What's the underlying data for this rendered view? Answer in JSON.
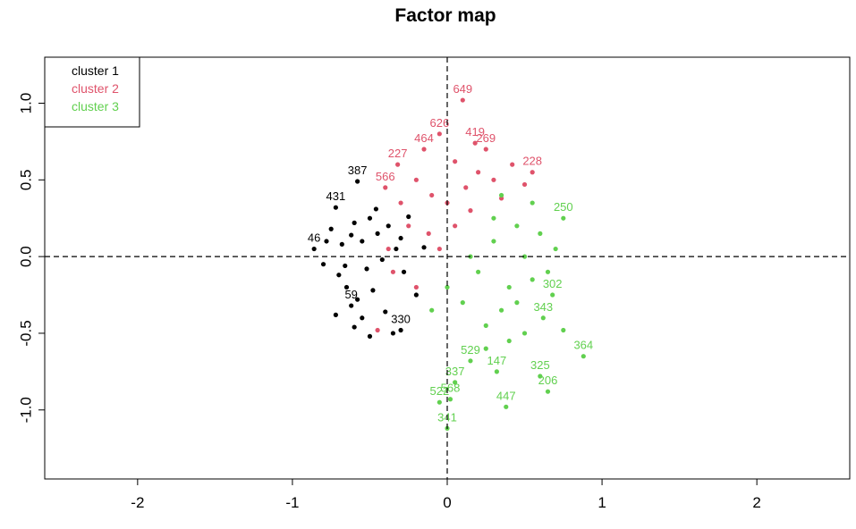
{
  "chart_data": {
    "type": "scatter",
    "title": "Factor map",
    "xlabel": "",
    "ylabel": "",
    "xlim": [
      -2.6,
      2.6
    ],
    "ylim": [
      -1.45,
      1.3
    ],
    "x_ticks": [
      "-2",
      "-1",
      "0",
      "1",
      "2"
    ],
    "x_tick_values": [
      -2,
      -1,
      0,
      1,
      2
    ],
    "y_ticks": [
      "-1.0",
      "-0.5",
      "0.0",
      "0.5",
      "1.0"
    ],
    "y_tick_values": [
      -1.0,
      -0.5,
      0.0,
      0.5,
      1.0
    ],
    "reference_lines": {
      "x": 0,
      "y": 0,
      "style": "dashed"
    },
    "legend_position": "top-left",
    "series": [
      {
        "name": "cluster 1",
        "color": "#000000",
        "points": [
          {
            "x": -0.58,
            "y": 0.49,
            "label": "387"
          },
          {
            "x": -0.72,
            "y": 0.32,
            "label": "431"
          },
          {
            "x": -0.86,
            "y": 0.05,
            "label": "46"
          },
          {
            "x": -0.62,
            "y": -0.32,
            "label": "59"
          },
          {
            "x": -0.3,
            "y": -0.48,
            "label": "330"
          },
          {
            "x": -0.75,
            "y": 0.18
          },
          {
            "x": -0.68,
            "y": 0.08
          },
          {
            "x": -0.6,
            "y": 0.22
          },
          {
            "x": -0.55,
            "y": 0.1
          },
          {
            "x": -0.8,
            "y": -0.05
          },
          {
            "x": -0.7,
            "y": -0.12
          },
          {
            "x": -0.65,
            "y": -0.2
          },
          {
            "x": -0.5,
            "y": 0.25
          },
          {
            "x": -0.45,
            "y": 0.15
          },
          {
            "x": -0.52,
            "y": -0.08
          },
          {
            "x": -0.42,
            "y": -0.02
          },
          {
            "x": -0.38,
            "y": 0.2
          },
          {
            "x": -0.58,
            "y": -0.28
          },
          {
            "x": -0.48,
            "y": -0.22
          },
          {
            "x": -0.55,
            "y": -0.4
          },
          {
            "x": -0.6,
            "y": -0.46
          },
          {
            "x": -0.72,
            "y": -0.38
          },
          {
            "x": -0.4,
            "y": -0.36
          },
          {
            "x": -0.35,
            "y": -0.5
          },
          {
            "x": -0.33,
            "y": 0.05
          },
          {
            "x": -0.3,
            "y": 0.12
          },
          {
            "x": -0.28,
            "y": -0.1
          },
          {
            "x": -0.25,
            "y": 0.26
          },
          {
            "x": -0.2,
            "y": -0.25
          },
          {
            "x": -0.15,
            "y": 0.06
          },
          {
            "x": -0.62,
            "y": 0.14
          },
          {
            "x": -0.66,
            "y": -0.06
          },
          {
            "x": -0.78,
            "y": 0.1
          },
          {
            "x": -0.46,
            "y": 0.31
          },
          {
            "x": -0.5,
            "y": -0.52
          }
        ]
      },
      {
        "name": "cluster 2",
        "color": "#df536b",
        "points": [
          {
            "x": 0.1,
            "y": 1.02,
            "label": "649"
          },
          {
            "x": -0.05,
            "y": 0.8,
            "label": "626"
          },
          {
            "x": 0.18,
            "y": 0.74,
            "label": "419"
          },
          {
            "x": -0.15,
            "y": 0.7,
            "label": "464"
          },
          {
            "x": 0.25,
            "y": 0.7,
            "label": "269"
          },
          {
            "x": -0.32,
            "y": 0.6,
            "label": "227"
          },
          {
            "x": -0.4,
            "y": 0.45,
            "label": "566"
          },
          {
            "x": 0.55,
            "y": 0.55,
            "label": "228"
          },
          {
            "x": 0.2,
            "y": 0.55
          },
          {
            "x": 0.05,
            "y": 0.62
          },
          {
            "x": -0.2,
            "y": 0.5
          },
          {
            "x": -0.1,
            "y": 0.4
          },
          {
            "x": 0.0,
            "y": 0.35
          },
          {
            "x": 0.12,
            "y": 0.45
          },
          {
            "x": 0.3,
            "y": 0.5
          },
          {
            "x": 0.42,
            "y": 0.6
          },
          {
            "x": 0.5,
            "y": 0.47
          },
          {
            "x": -0.3,
            "y": 0.35
          },
          {
            "x": -0.25,
            "y": 0.2
          },
          {
            "x": -0.12,
            "y": 0.15
          },
          {
            "x": 0.05,
            "y": 0.2
          },
          {
            "x": -0.35,
            "y": -0.1
          },
          {
            "x": -0.2,
            "y": -0.2
          },
          {
            "x": -0.05,
            "y": 0.05
          },
          {
            "x": -0.45,
            "y": -0.48
          },
          {
            "x": 0.15,
            "y": 0.3
          },
          {
            "x": 0.35,
            "y": 0.38
          },
          {
            "x": -0.38,
            "y": 0.05
          }
        ]
      },
      {
        "name": "cluster 3",
        "color": "#61d04f",
        "points": [
          {
            "x": 0.88,
            "y": -0.65,
            "label": "364"
          },
          {
            "x": 0.75,
            "y": 0.25,
            "label": "250"
          },
          {
            "x": 0.65,
            "y": -0.88,
            "label": "206"
          },
          {
            "x": 0.6,
            "y": -0.78,
            "label": "325"
          },
          {
            "x": 0.38,
            "y": -0.98,
            "label": "447"
          },
          {
            "x": 0.32,
            "y": -0.75,
            "label": "147"
          },
          {
            "x": 0.15,
            "y": -0.68,
            "label": "529"
          },
          {
            "x": 0.05,
            "y": -0.82,
            "label": "337"
          },
          {
            "x": 0.02,
            "y": -0.93,
            "label": "568"
          },
          {
            "x": -0.05,
            "y": -0.95,
            "label": "522"
          },
          {
            "x": 0.0,
            "y": -1.12,
            "label": "341"
          },
          {
            "x": 0.62,
            "y": -0.4,
            "label": "343"
          },
          {
            "x": 0.68,
            "y": -0.25,
            "label": "302"
          },
          {
            "x": 0.5,
            "y": 0.0
          },
          {
            "x": 0.4,
            "y": -0.2
          },
          {
            "x": 0.3,
            "y": 0.1
          },
          {
            "x": 0.2,
            "y": -0.1
          },
          {
            "x": 0.6,
            "y": 0.15
          },
          {
            "x": 0.55,
            "y": -0.15
          },
          {
            "x": 0.45,
            "y": 0.2
          },
          {
            "x": 0.35,
            "y": -0.35
          },
          {
            "x": 0.25,
            "y": -0.45
          },
          {
            "x": 0.1,
            "y": -0.3
          },
          {
            "x": 0.7,
            "y": 0.05
          },
          {
            "x": 0.65,
            "y": -0.1
          },
          {
            "x": 0.5,
            "y": -0.5
          },
          {
            "x": 0.4,
            "y": -0.55
          },
          {
            "x": 0.3,
            "y": 0.25
          },
          {
            "x": 0.15,
            "y": 0.0
          },
          {
            "x": 0.0,
            "y": -0.2
          },
          {
            "x": -0.1,
            "y": -0.35
          },
          {
            "x": 0.55,
            "y": 0.35
          },
          {
            "x": 0.45,
            "y": -0.3
          },
          {
            "x": 0.25,
            "y": -0.6
          },
          {
            "x": 0.75,
            "y": -0.48
          },
          {
            "x": 0.35,
            "y": 0.4
          }
        ]
      }
    ]
  }
}
